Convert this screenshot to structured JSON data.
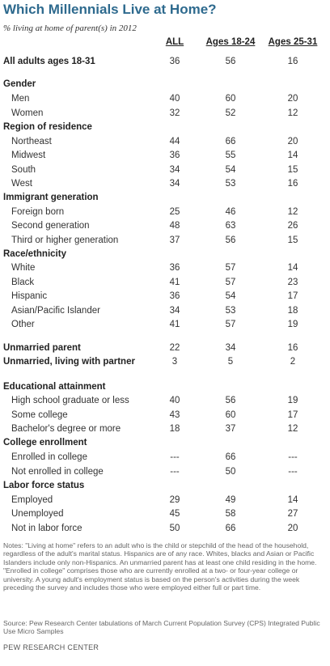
{
  "title": "Which Millennials Live at Home?",
  "subtitle": "% living at home of parent(s) in 2012",
  "columns": [
    "ALL",
    "Ages 18-24",
    "Ages 25-31"
  ],
  "notes": "Notes: \"Living at home\" refers to an adult who is the child or stepchild of the head of the household, regardless of the adult's marital status.  Hispanics are of any race. Whites, blacks and Asian or Pacific Islanders include only non-Hispanics.  An unmarried parent has at least one child residing in the home. \"Enrolled in college\" comprises those who are currently enrolled at a two- or four-year college or university. A young  adult's employment status is based on the person's activities during the week preceding the survey  and includes those who were employed either full or part time.",
  "source": "Source: Pew Research Center tabulations of March Current Population Survey (CPS) Integrated Public Use Micro Samples",
  "organization": "PEW RESEARCH CENTER",
  "chart_data": {
    "type": "table",
    "title": "Which Millennials Live at Home?",
    "subtitle": "% living at home of parent(s) in 2012",
    "columns": [
      "ALL",
      "Ages 18-24",
      "Ages 25-31"
    ],
    "rows": [
      {
        "kind": "top",
        "label": "All adults ages 18-31",
        "values": [
          "36",
          "56",
          "16"
        ]
      },
      {
        "kind": "head",
        "label": "Gender",
        "values": [
          "",
          "",
          ""
        ]
      },
      {
        "kind": "item",
        "label": "Men",
        "values": [
          "40",
          "60",
          "20"
        ]
      },
      {
        "kind": "item",
        "label": "Women",
        "values": [
          "32",
          "52",
          "12"
        ]
      },
      {
        "kind": "head",
        "label": "Region of residence",
        "values": [
          "",
          "",
          ""
        ]
      },
      {
        "kind": "item",
        "label": "Northeast",
        "values": [
          "44",
          "66",
          "20"
        ]
      },
      {
        "kind": "item",
        "label": "Midwest",
        "values": [
          "36",
          "55",
          "14"
        ]
      },
      {
        "kind": "item",
        "label": "South",
        "values": [
          "34",
          "54",
          "15"
        ]
      },
      {
        "kind": "item",
        "label": "West",
        "values": [
          "34",
          "53",
          "16"
        ]
      },
      {
        "kind": "head",
        "label": "Immigrant generation",
        "values": [
          "",
          "",
          ""
        ]
      },
      {
        "kind": "item",
        "label": "Foreign born",
        "values": [
          "25",
          "46",
          "12"
        ]
      },
      {
        "kind": "item",
        "label": "Second generation",
        "values": [
          "48",
          "63",
          "26"
        ]
      },
      {
        "kind": "item",
        "label": "Third or higher generation",
        "values": [
          "37",
          "56",
          "15"
        ]
      },
      {
        "kind": "head",
        "label": "Race/ethnicity",
        "values": [
          "",
          "",
          ""
        ]
      },
      {
        "kind": "item",
        "label": "White",
        "values": [
          "36",
          "57",
          "14"
        ]
      },
      {
        "kind": "item",
        "label": "Black",
        "values": [
          "41",
          "57",
          "23"
        ]
      },
      {
        "kind": "item",
        "label": "Hispanic",
        "values": [
          "36",
          "54",
          "17"
        ]
      },
      {
        "kind": "item",
        "label": "Asian/Pacific Islander",
        "values": [
          "34",
          "53",
          "18"
        ]
      },
      {
        "kind": "item",
        "label": "Other",
        "values": [
          "41",
          "57",
          "19"
        ]
      },
      {
        "kind": "head",
        "label": "Unmarried parent",
        "values": [
          "22",
          "34",
          "16"
        ]
      },
      {
        "kind": "head",
        "label": "Unmarried, living with partner",
        "values": [
          "3",
          "5",
          "2"
        ]
      },
      {
        "kind": "head",
        "label": "Educational attainment",
        "values": [
          "",
          "",
          ""
        ]
      },
      {
        "kind": "item",
        "label": "High school graduate or less",
        "values": [
          "40",
          "56",
          "19"
        ]
      },
      {
        "kind": "item",
        "label": "Some college",
        "values": [
          "43",
          "60",
          "17"
        ]
      },
      {
        "kind": "item",
        "label": "Bachelor's degree or more",
        "values": [
          "18",
          "37",
          "12"
        ]
      },
      {
        "kind": "head",
        "label": "College enrollment",
        "values": [
          "",
          "",
          ""
        ]
      },
      {
        "kind": "item",
        "label": "Enrolled in college",
        "values": [
          "---",
          "66",
          "---"
        ]
      },
      {
        "kind": "item",
        "label": "Not enrolled in college",
        "values": [
          "---",
          "50",
          "---"
        ]
      },
      {
        "kind": "head",
        "label": "Labor force status",
        "values": [
          "",
          "",
          ""
        ]
      },
      {
        "kind": "item",
        "label": "Employed",
        "values": [
          "29",
          "49",
          "14"
        ]
      },
      {
        "kind": "item",
        "label": "Unemployed",
        "values": [
          "45",
          "58",
          "27"
        ]
      },
      {
        "kind": "item",
        "label": "Not in labor force",
        "values": [
          "50",
          "66",
          "20"
        ]
      }
    ]
  }
}
